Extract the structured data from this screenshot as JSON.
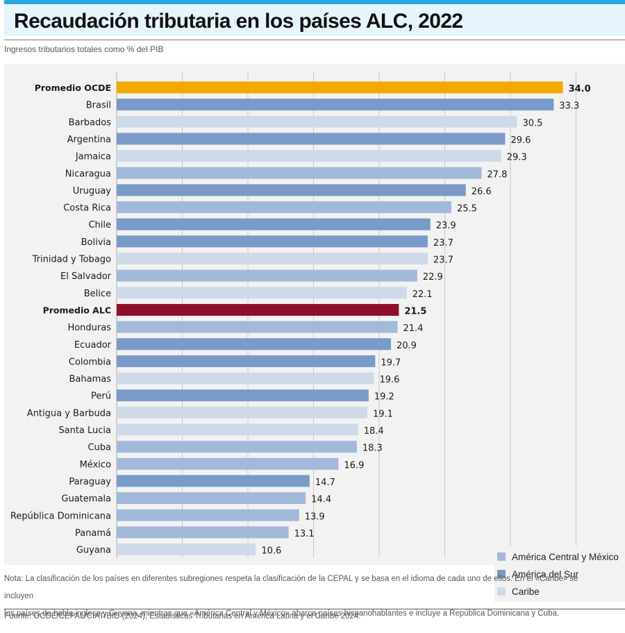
{
  "header": {
    "title": "Recaudación tributaria en los países ALC, 2022",
    "subtitle": "Ingresos tributarios totales como % del PIB"
  },
  "colors": {
    "ocde": "#f5a800",
    "alc": "#8e0e2c",
    "central": "#a3b9d9",
    "sur": "#7a9bc8",
    "caribe": "#cfdae9",
    "gridline": "#c8c8c8"
  },
  "legend": {
    "items": [
      {
        "label": "América Central y México",
        "group": "central"
      },
      {
        "label": "América del Sur",
        "group": "sur"
      },
      {
        "label": "Caribe",
        "group": "caribe"
      }
    ]
  },
  "chart_data": {
    "type": "bar",
    "orientation": "horizontal",
    "xlim": [
      0,
      35
    ],
    "grid": "vertical gridlines every 5",
    "legend_position": "bottom-right",
    "categories": [
      "Promedio OCDE",
      "Brasil",
      "Barbados",
      "Argentina",
      "Jamaica",
      "Nicaragua",
      "Uruguay",
      "Costa Rica",
      "Chile",
      "Bolivia",
      "Trinidad y Tobago",
      "El Salvador",
      "Belice",
      "Promedio ALC",
      "Honduras",
      "Ecuador",
      "Colombia",
      "Bahamas",
      "Perú",
      "Antigua y Barbuda",
      "Santa Lucia",
      "Cuba",
      "México",
      "Paraguay",
      "Guatemala",
      "República Dominicana",
      "Panamá",
      "Guyana"
    ],
    "values": [
      34.0,
      33.3,
      30.5,
      29.6,
      29.3,
      27.8,
      26.6,
      25.5,
      23.9,
      23.7,
      23.7,
      22.9,
      22.1,
      21.5,
      21.4,
      20.9,
      19.7,
      19.6,
      19.2,
      19.1,
      18.4,
      18.3,
      16.9,
      14.7,
      14.4,
      13.9,
      13.1,
      10.6
    ],
    "value_labels": [
      "34.0",
      "33.3",
      "30.5",
      "29.6",
      "29.3",
      "27.8",
      "26.6",
      "25.5",
      "23.9",
      "23.7",
      "23.7",
      "22.9",
      "22.1",
      "21.5",
      "21.4",
      "20.9",
      "19.7",
      "19.6",
      "19.2",
      "19.1",
      "18.4",
      "18.3",
      "16.9",
      "14.7",
      "14.4",
      "13.9",
      "13.1",
      "10.6"
    ],
    "groups": [
      "ocde",
      "sur",
      "caribe",
      "sur",
      "caribe",
      "central",
      "sur",
      "central",
      "sur",
      "sur",
      "caribe",
      "central",
      "caribe",
      "alc",
      "central",
      "sur",
      "sur",
      "caribe",
      "sur",
      "caribe",
      "caribe",
      "central",
      "central",
      "sur",
      "central",
      "central",
      "central",
      "caribe"
    ],
    "highlighted": [
      "Promedio OCDE",
      "Promedio ALC"
    ]
  },
  "footer": {
    "note_line1": "Nota: La clasificación de los países en diferentes subregiones respeta la clasificación de la CEPAL y se basa en el idioma de cada uno de ellos. En el «Caribe» se incluyen",
    "note_line2": "los países de habla inglesa y Guyana, mientras que «América Central y México» abarca países hispanohablantes e incluye a República Dominicana y Cuba.",
    "source": "Fuente: OCDE/CEPAL/CIAT/BID (2024), Estadísticas Tributarias en América Latina y el Caribe 2024."
  }
}
